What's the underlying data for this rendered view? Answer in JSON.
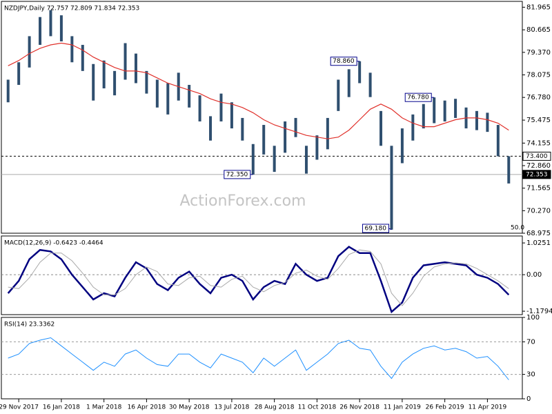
{
  "chart_data": [
    {
      "type": "range",
      "title": "NZDJPY,Daily  72.757 72.809 71.834 72.353",
      "watermark": "ActionForex.com",
      "scale_label": "50.0",
      "color": "#2f4f6f",
      "high": [
        77.8,
        78.8,
        80.3,
        81.4,
        81.8,
        81.5,
        80.3,
        79.8,
        78.7,
        78.9,
        78.3,
        79.9,
        79.3,
        78.3,
        77.8,
        77.6,
        78.2,
        77.5,
        76.9,
        75.7,
        77.0,
        76.5,
        75.6,
        74.1,
        75.2,
        74.0,
        75.4,
        75.6,
        74.0,
        74.6,
        75.6,
        77.8,
        78.4,
        78.86,
        78.2,
        76.0,
        74.0,
        75.0,
        75.8,
        76.4,
        76.78,
        76.6,
        76.7,
        76.2,
        76.0,
        75.9,
        75.2,
        73.4
      ],
      "low": [
        76.5,
        77.5,
        78.5,
        79.8,
        80.3,
        80.0,
        78.8,
        78.3,
        76.6,
        77.3,
        76.9,
        77.8,
        77.6,
        77.0,
        76.2,
        75.8,
        76.6,
        76.2,
        75.4,
        74.3,
        75.4,
        75.0,
        74.3,
        72.35,
        73.5,
        72.5,
        73.6,
        74.5,
        72.4,
        73.2,
        73.8,
        76.0,
        76.8,
        77.6,
        76.8,
        74.0,
        69.18,
        73.0,
        74.3,
        75.0,
        75.3,
        75.4,
        75.6,
        75.0,
        74.9,
        74.8,
        73.4,
        71.834
      ],
      "series": [
        {
          "color": "#e0302a",
          "values": [
            78.6,
            78.9,
            79.3,
            79.6,
            79.8,
            79.9,
            79.8,
            79.5,
            79.1,
            78.8,
            78.5,
            78.3,
            78.3,
            78.2,
            77.9,
            77.6,
            77.4,
            77.2,
            77.0,
            76.7,
            76.5,
            76.4,
            76.2,
            75.9,
            75.5,
            75.2,
            75.0,
            74.8,
            74.6,
            74.5,
            74.4,
            74.5,
            74.9,
            75.5,
            76.1,
            76.4,
            76.1,
            75.6,
            75.3,
            75.1,
            75.1,
            75.3,
            75.5,
            75.6,
            75.6,
            75.5,
            75.3,
            74.9
          ]
        }
      ],
      "annotations": [
        {
          "value": 78.86,
          "label": "78.860"
        },
        {
          "value": 76.78,
          "label": "76.780"
        },
        {
          "value": 72.35,
          "label": "72.350"
        },
        {
          "value": 69.18,
          "label": "69.180"
        }
      ],
      "reference_lines": [
        {
          "value": 73.4,
          "label": "73.400",
          "style": "dashed"
        },
        {
          "value": 72.353,
          "style": "solid"
        }
      ],
      "ylim": [
        68.975,
        82.3
      ],
      "yticks": [
        81.965,
        80.665,
        {
          "value": 79.37,
          "label": "79.370"
        },
        78.075,
        {
          "value": 76.78,
          "label": "76.780"
        },
        75.475,
        74.155,
        {
          "value": 72.86,
          "label": "72.860"
        },
        71.565,
        {
          "value": 70.27,
          "label": "70.270"
        },
        68.975
      ]
    },
    {
      "type": "line",
      "title": "MACD(12,26,9) -0.6423 -0.4464",
      "series": [
        {
          "color": "#000080",
          "width": 2.5,
          "values": [
            -0.6,
            -0.2,
            0.5,
            0.8,
            0.75,
            0.5,
            0.0,
            -0.4,
            -0.8,
            -0.6,
            -0.7,
            -0.1,
            0.4,
            0.2,
            -0.3,
            -0.5,
            -0.1,
            0.1,
            -0.3,
            -0.6,
            -0.1,
            0.0,
            -0.2,
            -0.8,
            -0.4,
            -0.2,
            -0.3,
            0.35,
            0.0,
            -0.2,
            -0.1,
            0.6,
            0.9,
            0.7,
            0.7,
            -0.2,
            -1.2,
            -0.9,
            -0.1,
            0.3,
            0.35,
            0.4,
            0.35,
            0.3,
            0.0,
            -0.1,
            -0.3,
            -0.65
          ]
        },
        {
          "color": "#a9a9a9",
          "width": 1,
          "values": [
            -0.4,
            -0.45,
            -0.1,
            0.4,
            0.7,
            0.7,
            0.45,
            0.05,
            -0.4,
            -0.65,
            -0.65,
            -0.45,
            0.0,
            0.25,
            0.1,
            -0.3,
            -0.35,
            -0.1,
            -0.05,
            -0.35,
            -0.4,
            -0.15,
            -0.05,
            -0.4,
            -0.55,
            -0.35,
            -0.25,
            0.05,
            0.15,
            -0.05,
            -0.15,
            0.2,
            0.65,
            0.8,
            0.75,
            0.35,
            -0.6,
            -1.0,
            -0.6,
            -0.05,
            0.25,
            0.35,
            0.38,
            0.35,
            0.2,
            0.0,
            -0.2,
            -0.45
          ]
        }
      ],
      "ylim": [
        -1.29,
        1.25
      ],
      "yticks": [
        1.0251,
        {
          "value": 0,
          "label": "0.00"
        },
        -1.1794
      ],
      "zero_line": true
    },
    {
      "type": "line",
      "title": "RSI(14) 23.3362",
      "series": [
        {
          "color": "#1e90ff",
          "width": 1,
          "values": [
            50,
            55,
            68,
            72,
            75,
            65,
            55,
            45,
            35,
            45,
            40,
            55,
            60,
            50,
            42,
            40,
            55,
            55,
            45,
            38,
            55,
            50,
            45,
            32,
            50,
            40,
            50,
            60,
            35,
            45,
            55,
            68,
            72,
            62,
            60,
            40,
            25,
            45,
            55,
            62,
            65,
            60,
            62,
            58,
            50,
            52,
            40,
            23.34
          ]
        }
      ],
      "ylim": [
        0,
        100
      ],
      "yticks": [
        100,
        70,
        30,
        0
      ],
      "levels": [
        70,
        30
      ],
      "categories": [
        null,
        "29 Nov 2017",
        null,
        null,
        null,
        "16 Jan 2018",
        null,
        null,
        null,
        "1 Mar 2018",
        null,
        null,
        null,
        "16 Apr 2018",
        null,
        null,
        null,
        "30 May 2018",
        null,
        null,
        null,
        "13 Jul 2018",
        null,
        null,
        null,
        "28 Aug 2018",
        null,
        null,
        null,
        "11 Oct 2018",
        null,
        null,
        null,
        "26 Nov 2018",
        null,
        null,
        null,
        "11 Jan 2019",
        null,
        null,
        null,
        "26 Feb 2019",
        null,
        null,
        null,
        "11 Apr 2019",
        null,
        null
      ]
    }
  ]
}
